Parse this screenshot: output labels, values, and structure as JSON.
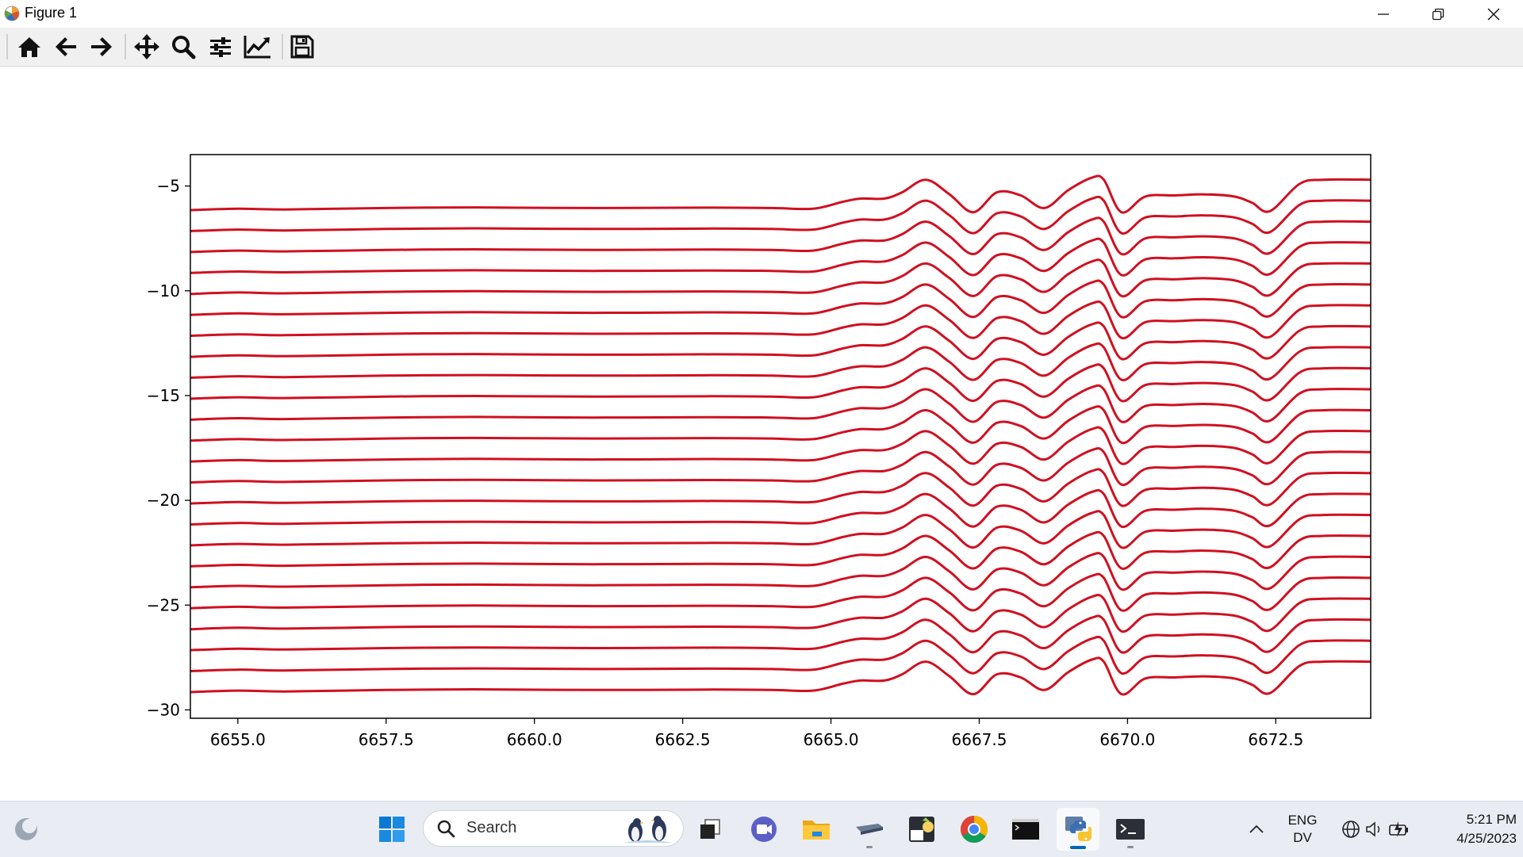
{
  "window": {
    "title": "Figure 1",
    "controls": {
      "minimize": "minimize-icon",
      "maximize": "restore-icon",
      "close": "close-icon"
    }
  },
  "toolbar": {
    "buttons": [
      {
        "name": "home",
        "icon": "home-icon"
      },
      {
        "name": "back",
        "icon": "arrow-left-icon"
      },
      {
        "name": "forward",
        "icon": "arrow-right-icon"
      },
      {
        "name": "pan",
        "icon": "move-icon"
      },
      {
        "name": "zoom",
        "icon": "magnifier-icon"
      },
      {
        "name": "configure-subplots",
        "icon": "sliders-icon"
      },
      {
        "name": "edit-axis",
        "icon": "line-chart-icon"
      },
      {
        "name": "save",
        "icon": "floppy-disk-icon"
      }
    ]
  },
  "chart_data": {
    "type": "line",
    "title": "",
    "xlabel": "",
    "ylabel": "",
    "xlim": [
      6654.2,
      6674.1
    ],
    "ylim": [
      -30.4,
      -3.5
    ],
    "xticks": [
      6655.0,
      6657.5,
      6660.0,
      6662.5,
      6665.0,
      6667.5,
      6670.0,
      6672.5
    ],
    "xtick_labels": [
      "6655.0",
      "6657.5",
      "6660.0",
      "6662.5",
      "6665.0",
      "6667.5",
      "6670.0",
      "6672.5"
    ],
    "yticks": [
      -5,
      -10,
      -15,
      -20,
      -25,
      -30
    ],
    "ytick_labels": [
      "−5",
      "−10",
      "−15",
      "−20",
      "−25",
      "−30"
    ],
    "grid": false,
    "line_color": "#d01020",
    "series_offsets": [
      -6,
      -7,
      -8,
      -9,
      -10,
      -11,
      -12,
      -13,
      -14,
      -15,
      -16,
      -17,
      -18,
      -19,
      -20,
      -21,
      -22,
      -23,
      -24,
      -25,
      -26,
      -27,
      -28,
      -29
    ],
    "profile": {
      "x": [
        6654.2,
        6655.0,
        6655.8,
        6657.5,
        6659.0,
        6661.0,
        6663.0,
        6664.0,
        6664.7,
        6665.2,
        6665.5,
        6665.9,
        6666.2,
        6666.6,
        6667.0,
        6667.4,
        6667.8,
        6668.2,
        6668.6,
        6669.0,
        6669.4,
        6669.6,
        6669.9,
        6670.3,
        6670.8,
        6671.3,
        6671.8,
        6672.1,
        6672.4,
        6672.9,
        6673.3,
        6674.1
      ],
      "y": [
        -0.15,
        -0.08,
        -0.12,
        -0.05,
        -0.02,
        -0.05,
        -0.03,
        -0.05,
        -0.08,
        0.25,
        0.4,
        0.4,
        0.7,
        1.3,
        0.6,
        -0.25,
        0.7,
        0.55,
        -0.05,
        0.8,
        1.4,
        1.3,
        -0.25,
        0.5,
        0.55,
        0.6,
        0.5,
        0.2,
        -0.2,
        1.1,
        1.3,
        1.3
      ]
    }
  },
  "taskbar": {
    "search_placeholder": "Search",
    "pinned": [
      {
        "name": "start",
        "icon": "windows-start-icon"
      },
      {
        "name": "task-view",
        "icon": "task-view-icon"
      },
      {
        "name": "meet",
        "icon": "video-call-icon"
      },
      {
        "name": "file-explorer",
        "icon": "folder-icon"
      },
      {
        "name": "remote-desktop",
        "icon": "projector-icon"
      },
      {
        "name": "notepad-plus",
        "icon": "notepad-icon"
      },
      {
        "name": "chrome",
        "icon": "chrome-icon"
      },
      {
        "name": "terminal",
        "icon": "command-prompt-icon"
      },
      {
        "name": "python",
        "icon": "python-icon"
      },
      {
        "name": "powershell",
        "icon": "powershell-icon"
      }
    ],
    "tray": {
      "language_line1": "ENG",
      "language_line2": "DV",
      "time": "5:21 PM",
      "date": "4/25/2023"
    }
  }
}
